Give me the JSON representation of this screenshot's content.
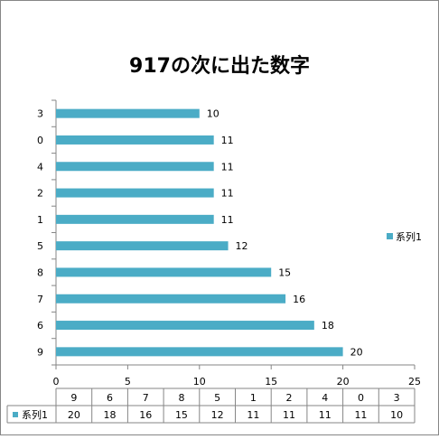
{
  "chart_data": {
    "type": "bar",
    "orientation": "horizontal",
    "title": "917の次に出た数字",
    "categories": [
      "3",
      "0",
      "4",
      "2",
      "1",
      "5",
      "8",
      "7",
      "6",
      "9"
    ],
    "series": [
      {
        "name": "系列1",
        "values": [
          10,
          11,
          11,
          11,
          11,
          12,
          15,
          16,
          18,
          20
        ]
      }
    ],
    "xlim": [
      0,
      25
    ],
    "x_ticks": [
      0,
      5,
      10,
      15,
      20,
      25
    ],
    "legend_position": "right",
    "data_table": {
      "categories": [
        "9",
        "6",
        "7",
        "8",
        "5",
        "1",
        "2",
        "4",
        "0",
        "3"
      ],
      "values": [
        20,
        18,
        16,
        15,
        12,
        11,
        11,
        11,
        11,
        10
      ]
    },
    "colors": {
      "bar": "#4BACC6",
      "axis": "#868686",
      "text": "#000000"
    }
  }
}
